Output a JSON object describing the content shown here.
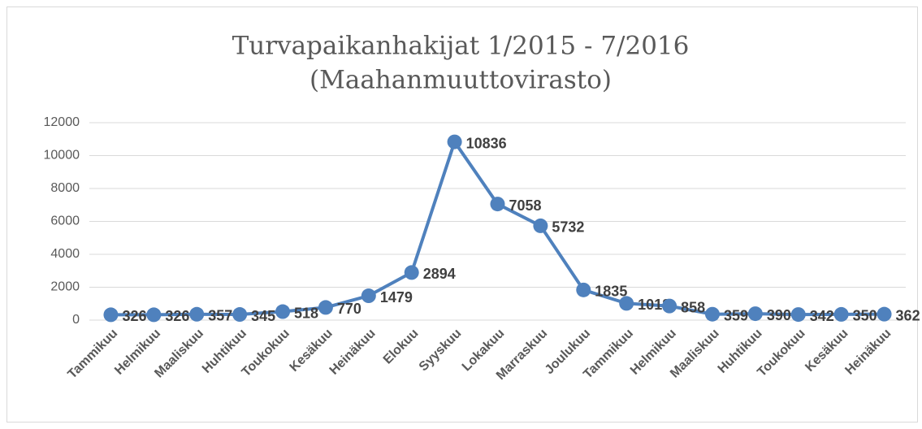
{
  "chart_data": {
    "type": "line",
    "title": "Turvapaikanhakijat 1/2015 - 7/2016",
    "subtitle": "(Maahanmuuttovirasto)",
    "categories": [
      "Tammikuu",
      "Helmikuu",
      "Maaliskuu",
      "Huhtikuu",
      "Toukokuu",
      "Kesäkuu",
      "Heinäkuu",
      "Elokuu",
      "Syyskuu",
      "Lokakuu",
      "Marraskuu",
      "Joulukuu",
      "Tammikuu",
      "Helmikuu",
      "Maaliskuu",
      "Huhtikuu",
      "Toukokuu",
      "Kesäkuu",
      "Heinäkuu"
    ],
    "values": [
      326,
      326,
      357,
      345,
      518,
      770,
      1479,
      2894,
      10836,
      7058,
      5732,
      1835,
      1018,
      858,
      359,
      390,
      342,
      350,
      362
    ],
    "color": "#4f81bd",
    "ylim": [
      0,
      12000
    ],
    "yticks": [
      0,
      2000,
      4000,
      6000,
      8000,
      10000,
      12000
    ],
    "grid": true
  }
}
